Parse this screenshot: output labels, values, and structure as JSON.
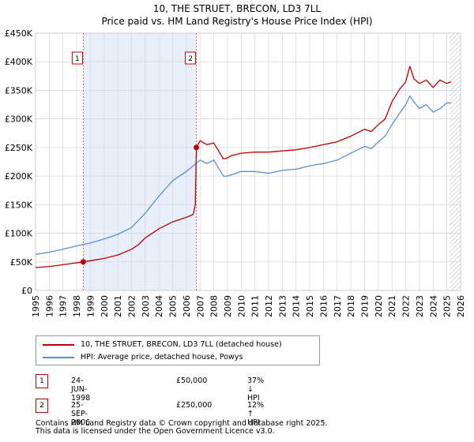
{
  "title": "10, THE STRUET, BRECON, LD3 7LL",
  "subtitle": "Price paid vs. HM Land Registry's House Price Index (HPI)",
  "colors": {
    "price_line": "#c00000",
    "hpi_line": "#5b8fcf",
    "shade": "#e8eefa",
    "grid": "#d8d8d8",
    "marker_box": "#c00000",
    "vline": "#e06060"
  },
  "chart_data": {
    "type": "line",
    "title": "10, THE STRUET, BRECON, LD3 7LL",
    "subtitle": "Price paid vs. HM Land Registry's House Price Index (HPI)",
    "xlim": [
      1995,
      2026
    ],
    "ylim": [
      0,
      450000
    ],
    "x_ticks": [
      "1995",
      "1996",
      "1997",
      "1998",
      "1999",
      "2000",
      "2001",
      "2002",
      "2003",
      "2004",
      "2005",
      "2006",
      "2007",
      "2008",
      "2009",
      "2010",
      "2011",
      "2012",
      "2013",
      "2014",
      "2015",
      "2016",
      "2017",
      "2018",
      "2019",
      "2020",
      "2021",
      "2022",
      "2023",
      "2024",
      "2025",
      "2026"
    ],
    "y_ticks": [
      {
        "value": 0,
        "label": "£0"
      },
      {
        "value": 50000,
        "label": "£50K"
      },
      {
        "value": 100000,
        "label": "£100K"
      },
      {
        "value": 150000,
        "label": "£150K"
      },
      {
        "value": 200000,
        "label": "£200K"
      },
      {
        "value": 250000,
        "label": "£250K"
      },
      {
        "value": 300000,
        "label": "£300K"
      },
      {
        "value": 350000,
        "label": "£350K"
      },
      {
        "value": 400000,
        "label": "£400K"
      },
      {
        "value": 450000,
        "label": "£450K"
      }
    ],
    "shaded_range": [
      1998.48,
      2006.73
    ],
    "hatched_from": 2025.2,
    "series": [
      {
        "name": "10, THE STRUET, BRECON, LD3 7LL (detached house)",
        "color": "#c00000",
        "x": [
          1995,
          1996,
          1997,
          1998.48,
          1999,
          2000,
          2001,
          2002,
          2002.5,
          2003,
          2004,
          2005,
          2006,
          2006.5,
          2006.65,
          2006.73,
          2007,
          2007.5,
          2008,
          2008.7,
          2009,
          2009.3,
          2010,
          2011,
          2012,
          2013,
          2014,
          2015,
          2016,
          2017,
          2018,
          2019,
          2019.5,
          2020,
          2020.5,
          2021,
          2021.5,
          2022,
          2022.3,
          2022.6,
          2023,
          2023.5,
          2024,
          2024.5,
          2025,
          2025.3
        ],
        "values": [
          40000,
          42000,
          45000,
          50000,
          52000,
          56000,
          62000,
          72000,
          80000,
          92000,
          108000,
          120000,
          128000,
          133000,
          150000,
          250000,
          262000,
          255000,
          258000,
          230000,
          232000,
          236000,
          240000,
          242000,
          242000,
          244000,
          246000,
          250000,
          255000,
          260000,
          270000,
          282000,
          278000,
          290000,
          300000,
          330000,
          350000,
          365000,
          392000,
          370000,
          362000,
          368000,
          355000,
          368000,
          362000,
          365000
        ]
      },
      {
        "name": "HPI: Average price, detached house, Powys",
        "color": "#5b8fcf",
        "x": [
          1995,
          1996,
          1997,
          1998,
          1999,
          2000,
          2001,
          2002,
          2003,
          2004,
          2005,
          2006,
          2006.5,
          2007,
          2007.5,
          2008,
          2008.7,
          2009,
          2009.5,
          2010,
          2011,
          2012,
          2013,
          2014,
          2015,
          2016,
          2017,
          2018,
          2019,
          2019.5,
          2020,
          2020.5,
          2021,
          2021.5,
          2022,
          2022.3,
          2022.6,
          2023,
          2023.5,
          2024,
          2024.5,
          2025,
          2025.3
        ],
        "values": [
          63000,
          67000,
          72000,
          78000,
          83000,
          90000,
          98000,
          110000,
          135000,
          165000,
          192000,
          208000,
          218000,
          228000,
          222000,
          228000,
          200000,
          200000,
          204000,
          208000,
          208000,
          205000,
          210000,
          212000,
          218000,
          222000,
          228000,
          240000,
          252000,
          248000,
          260000,
          270000,
          290000,
          308000,
          325000,
          340000,
          330000,
          318000,
          325000,
          312000,
          318000,
          328000,
          328000
        ]
      }
    ],
    "transactions": [
      {
        "id": "1",
        "date": "24-JUN-1998",
        "x": 1998.48,
        "price": 50000,
        "price_label": "£50,000",
        "hpi_label": "37% ↓ HPI"
      },
      {
        "id": "2",
        "date": "25-SEP-2006",
        "x": 2006.73,
        "price": 250000,
        "price_label": "£250,000",
        "hpi_label": "12% ↑ HPI"
      }
    ]
  },
  "legend": {
    "price_label": "10, THE STRUET, BRECON, LD3 7LL (detached house)",
    "hpi_label": "HPI: Average price, detached house, Powys"
  },
  "table": [
    {
      "id": "1",
      "date": "24-JUN-1998",
      "price": "£50,000",
      "hpi": "37% ↓ HPI"
    },
    {
      "id": "2",
      "date": "25-SEP-2006",
      "price": "£250,000",
      "hpi": "12% ↑ HPI"
    }
  ],
  "footer": {
    "line1": "Contains HM Land Registry data © Crown copyright and database right 2025.",
    "line2": "This data is licensed under the Open Government Licence v3.0."
  }
}
